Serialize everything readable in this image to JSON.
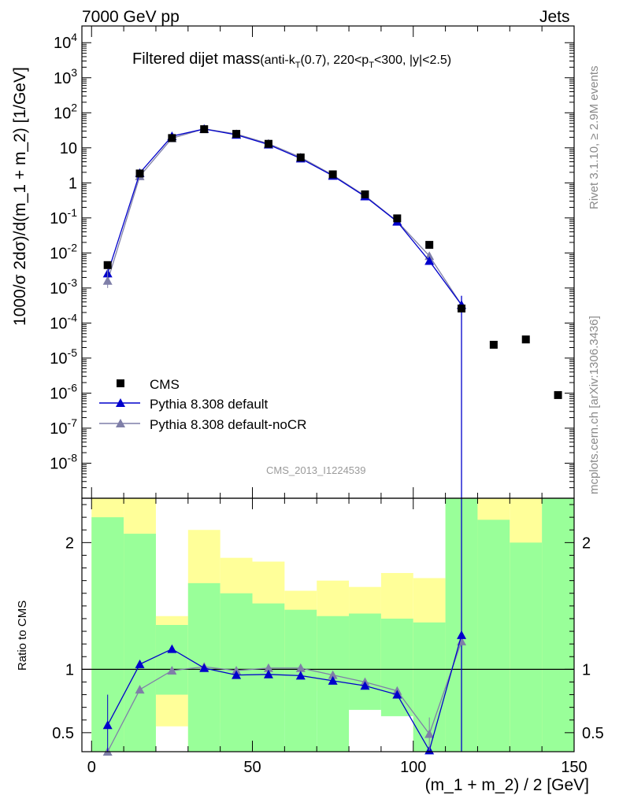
{
  "header": {
    "energy_label": "7000 GeV pp",
    "category_label": "Jets"
  },
  "side_labels": {
    "rivet": "Rivet 3.1.10, ≥ 2.9M events",
    "mcplots": "mcplots.cern.ch [arXiv:1306.3436]"
  },
  "analysis_tag": "CMS_2013_I1224539",
  "colors": {
    "cms": "#000000",
    "default": "#0000cc",
    "nocr": "#7f7fa8",
    "band_green": "#99ff99",
    "band_yellow": "#ffff99"
  },
  "chart_data": [
    {
      "type": "line",
      "title_main": "Filtered dijet mass",
      "title_sub": "(anti-k",
      "title_sub_T": "T",
      "title_sub_rest": "(0.7), 220<p",
      "title_sub_T2": "T",
      "title_sub_end": "<300, |y|<2.5)",
      "ylabel": "1000/σ 2dσ)/d(m_1 + m_2) [1/GeV]",
      "yscale": "log",
      "ylim": [
        1e-09,
        30000
      ],
      "xlim": [
        -3,
        150
      ],
      "y_ticks": [
        "10^4",
        "10^3",
        "10^2",
        "10",
        "1",
        "10^-1",
        "10^-2",
        "10^-3",
        "10^-4",
        "10^-5",
        "10^-6",
        "10^-7",
        "10^-8"
      ],
      "legend_position": "lower-left",
      "series": [
        {
          "name": "CMS",
          "marker": "square",
          "x": [
            5,
            15,
            25,
            35,
            45,
            55,
            65,
            75,
            85,
            95,
            105,
            115,
            125,
            135,
            145
          ],
          "y": [
            0.0045,
            1.85,
            19,
            34,
            25,
            13,
            5.3,
            1.75,
            0.47,
            0.097,
            0.017,
            0.00026,
            2.4e-05,
            3.4e-05,
            8.8e-07
          ]
        },
        {
          "name": "Pythia 8.308 default",
          "marker": "triangle",
          "x": [
            5,
            15,
            25,
            35,
            45,
            55,
            65,
            75,
            85,
            95,
            105,
            115
          ],
          "y": [
            0.0026,
            1.92,
            21.5,
            34.5,
            23.6,
            12.4,
            4.97,
            1.59,
            0.41,
            0.078,
            0.0059,
            0.00033
          ]
        },
        {
          "name": "Pythia 8.308 default-noCR",
          "marker": "triangle",
          "x": [
            5,
            15,
            25,
            35,
            45,
            55,
            65,
            75,
            85,
            95,
            105,
            115
          ],
          "y": [
            0.0016,
            1.55,
            18.8,
            34.8,
            24.8,
            13.2,
            5.35,
            1.67,
            0.43,
            0.08,
            0.0082,
            0.00033
          ]
        }
      ]
    },
    {
      "type": "line",
      "ylabel": "Ratio to CMS",
      "xlabel": "(m_1 + m_2) / 2 [GeV]",
      "ylim": [
        0.35,
        2.35
      ],
      "xlim": [
        -3,
        150
      ],
      "y_ticks": [
        "0.5",
        "1",
        "2"
      ],
      "x_ticks": [
        "0",
        "50",
        "100",
        "150"
      ],
      "bands": {
        "edges": [
          0,
          10,
          20,
          30,
          40,
          50,
          60,
          70,
          80,
          90,
          100,
          110,
          120,
          130,
          140,
          150
        ],
        "yellow_hi": [
          2.35,
          2.35,
          1.42,
          2.1,
          1.88,
          1.85,
          1.62,
          1.7,
          1.65,
          1.76,
          1.72,
          2.35,
          2.35,
          2.35,
          2.35
        ],
        "yellow_lo": [
          0.35,
          0.35,
          0.55,
          0.35,
          0.58,
          0.67,
          0.83,
          0.83,
          0.84,
          0.78,
          0.35,
          0.35,
          0.35,
          0.35,
          0.35
        ],
        "green_hi": [
          2.2,
          2.07,
          1.35,
          1.68,
          1.6,
          1.52,
          1.47,
          1.42,
          1.44,
          1.4,
          1.37,
          2.35,
          2.18,
          2.0,
          2.35
        ],
        "green_lo": [
          0.35,
          0.35,
          0.8,
          0.35,
          0.35,
          0.35,
          0.35,
          0.35,
          0.68,
          0.63,
          0.35,
          0.35,
          0.35,
          0.35,
          0.35
        ]
      },
      "series": [
        {
          "name": "Pythia 8.308 default",
          "x": [
            5,
            15,
            25,
            35,
            45,
            55,
            65,
            75,
            85,
            95,
            105,
            115
          ],
          "y": [
            0.56,
            1.04,
            1.16,
            1.01,
            0.955,
            0.96,
            0.95,
            0.91,
            0.87,
            0.8,
            0.36,
            1.27
          ]
        },
        {
          "name": "Pythia 8.308 default-noCR",
          "x": [
            5,
            15,
            25,
            35,
            45,
            55,
            65,
            75,
            85,
            95,
            105,
            115
          ],
          "y": [
            0.35,
            0.84,
            0.99,
            1.02,
            0.99,
            1.01,
            1.01,
            0.955,
            0.9,
            0.83,
            0.49,
            1.22
          ]
        }
      ]
    }
  ]
}
